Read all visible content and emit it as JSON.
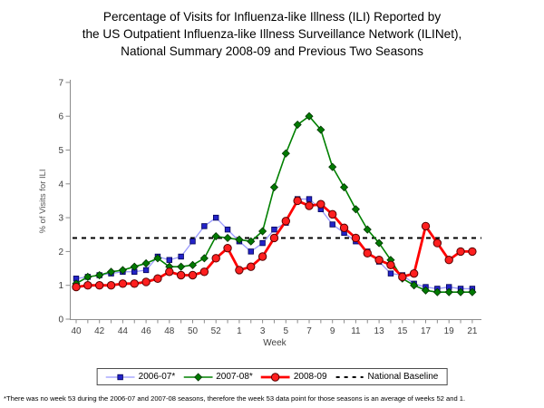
{
  "footnote": "*There was no week 53 during the 2006-07 and 2007-08 seasons, therefore the week 53 data point for those seasons is an average of weeks 52 and 1.",
  "chart_data": {
    "type": "line",
    "title": "Percentage of Visits for Influenza-like Illness (ILI) Reported by\nthe US Outpatient Influenza-like Illness Surveillance Network (ILINet),\nNational Summary 2008-09 and Previous Two Seasons",
    "xlabel": "Week",
    "ylabel": "% of Visits for ILI",
    "ylim": [
      0,
      7
    ],
    "y_ticks": [
      0,
      1,
      2,
      3,
      4,
      5,
      6,
      7
    ],
    "grid": false,
    "legend_position": "bottom",
    "x_labels_every": 2,
    "categories": [
      "40",
      "41",
      "42",
      "43",
      "44",
      "45",
      "46",
      "47",
      "48",
      "49",
      "50",
      "51",
      "52",
      "53",
      "1",
      "2",
      "3",
      "4",
      "5",
      "6",
      "7",
      "8",
      "9",
      "10",
      "11",
      "12",
      "13",
      "14",
      "15",
      "16",
      "17",
      "18",
      "19",
      "20",
      "21"
    ],
    "series": [
      {
        "name": "2006-07*",
        "marker": "square",
        "line_color": "#9999FF",
        "line_width": 1.3,
        "marker_color": "#2323C8",
        "marker_edge": "#000055",
        "values": [
          1.2,
          1.25,
          1.3,
          1.35,
          1.4,
          1.4,
          1.45,
          1.85,
          1.75,
          1.85,
          2.3,
          2.75,
          3.0,
          2.65,
          2.3,
          2.0,
          2.25,
          2.65,
          2.85,
          3.55,
          3.55,
          3.25,
          2.8,
          2.55,
          2.3,
          2.0,
          1.7,
          1.35,
          1.3,
          1.05,
          0.95,
          0.9,
          0.95,
          0.9,
          0.9
        ]
      },
      {
        "name": "2007-08*",
        "marker": "diamond",
        "line_color": "#008000",
        "line_width": 1.6,
        "marker_color": "#007A00",
        "marker_edge": "#003300",
        "values": [
          1.05,
          1.25,
          1.3,
          1.4,
          1.45,
          1.55,
          1.65,
          1.8,
          1.55,
          1.55,
          1.6,
          1.8,
          2.45,
          2.4,
          2.35,
          2.3,
          2.6,
          3.9,
          4.9,
          5.75,
          6.0,
          5.6,
          4.5,
          3.9,
          3.25,
          2.65,
          2.25,
          1.75,
          1.2,
          1.0,
          0.85,
          0.8,
          0.8,
          0.8,
          0.8
        ]
      },
      {
        "name": "2008-09",
        "marker": "circle",
        "line_color": "#FF0000",
        "line_width": 2.8,
        "marker_color": "#FF1F1F",
        "marker_edge": "#550000",
        "values": [
          0.95,
          1.0,
          1.0,
          1.0,
          1.05,
          1.05,
          1.1,
          1.2,
          1.4,
          1.3,
          1.3,
          1.4,
          1.8,
          2.1,
          1.45,
          1.55,
          1.85,
          2.4,
          2.9,
          3.5,
          3.35,
          3.4,
          3.1,
          2.7,
          2.4,
          1.95,
          1.75,
          1.6,
          1.25,
          1.35,
          2.75,
          2.25,
          1.75,
          2.0,
          2.0
        ]
      }
    ],
    "baseline": {
      "name": "National Baseline",
      "value": 2.4,
      "color": "#000000",
      "style": "dashed"
    }
  }
}
